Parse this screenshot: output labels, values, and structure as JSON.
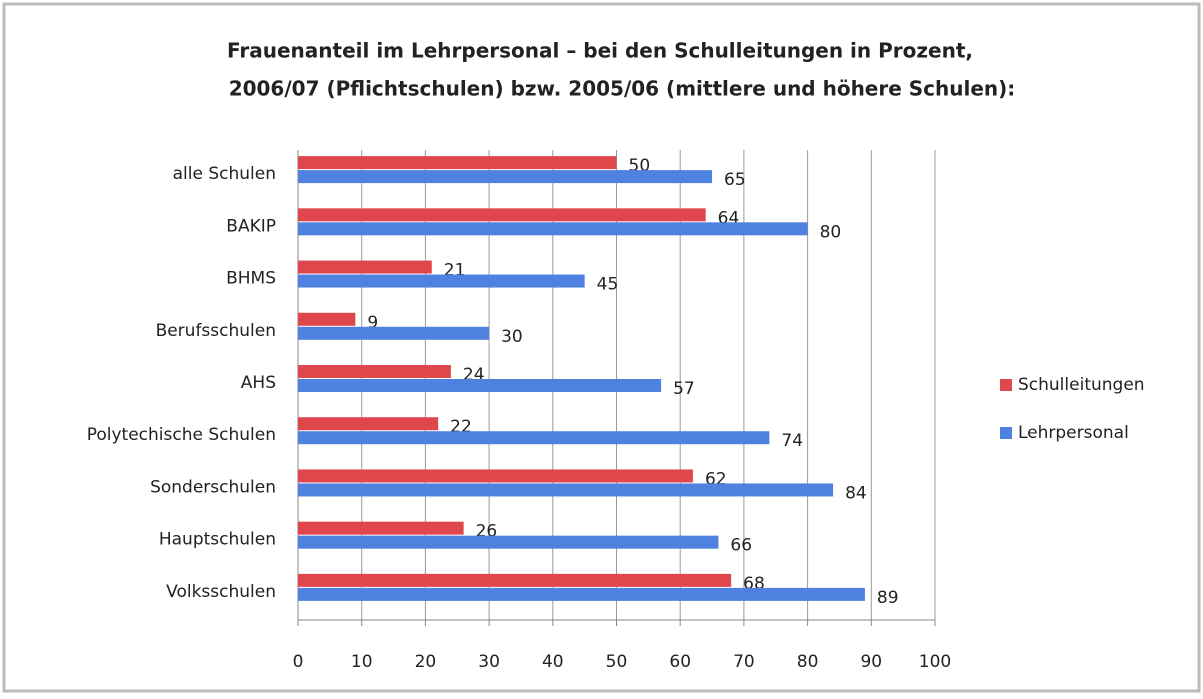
{
  "chart_data": {
    "type": "hbar",
    "title": [
      "Frauenanteil im Lehrpersonal – bei den Schulleitungen in Prozent,",
      "2006/07 (Pflichtschulen) bzw. 2005/06 (mittlere und höhere Schulen):"
    ],
    "categories": [
      "alle Schulen",
      "BAKIP",
      "BHMS",
      "Berufsschulen",
      "AHS",
      "Polytechische Schulen",
      "Sonderschulen",
      "Hauptschulen",
      "Volksschulen"
    ],
    "series": [
      {
        "name": "Schulleitungen",
        "color": "#e0474c",
        "values": [
          50,
          64,
          21,
          9,
          24,
          22,
          62,
          26,
          68
        ]
      },
      {
        "name": "Lehrpersonal",
        "color": "#4f81e0",
        "values": [
          65,
          80,
          45,
          30,
          57,
          74,
          84,
          66,
          89
        ]
      }
    ],
    "xlim": [
      0,
      100
    ],
    "xticks": [
      0,
      10,
      20,
      30,
      40,
      50,
      60,
      70,
      80,
      90,
      100
    ],
    "grid": true,
    "legend": "right"
  }
}
